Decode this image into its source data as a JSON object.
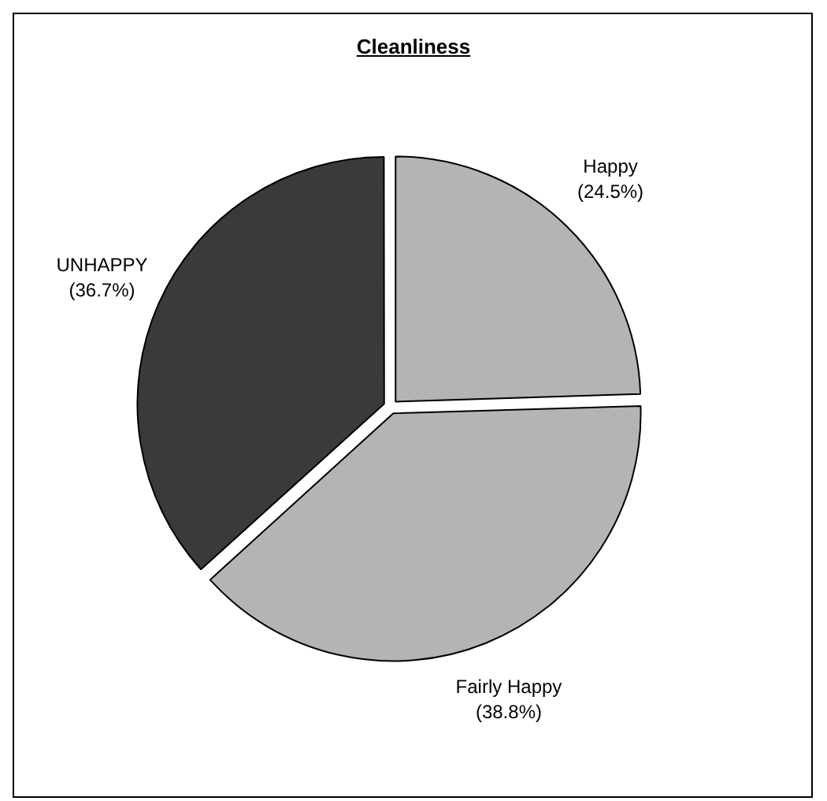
{
  "chart_data": {
    "type": "pie",
    "title": "Cleanliness",
    "categories": [
      "Happy",
      "Fairly Happy",
      "UNHAPPY"
    ],
    "values": [
      24.5,
      38.8,
      36.7
    ],
    "colors": [
      "#b4b4b4",
      "#b4b4b4",
      "#3a3a3a"
    ],
    "value_labels": [
      "(24.5%)",
      "(38.8%)",
      "(36.7%)"
    ]
  }
}
